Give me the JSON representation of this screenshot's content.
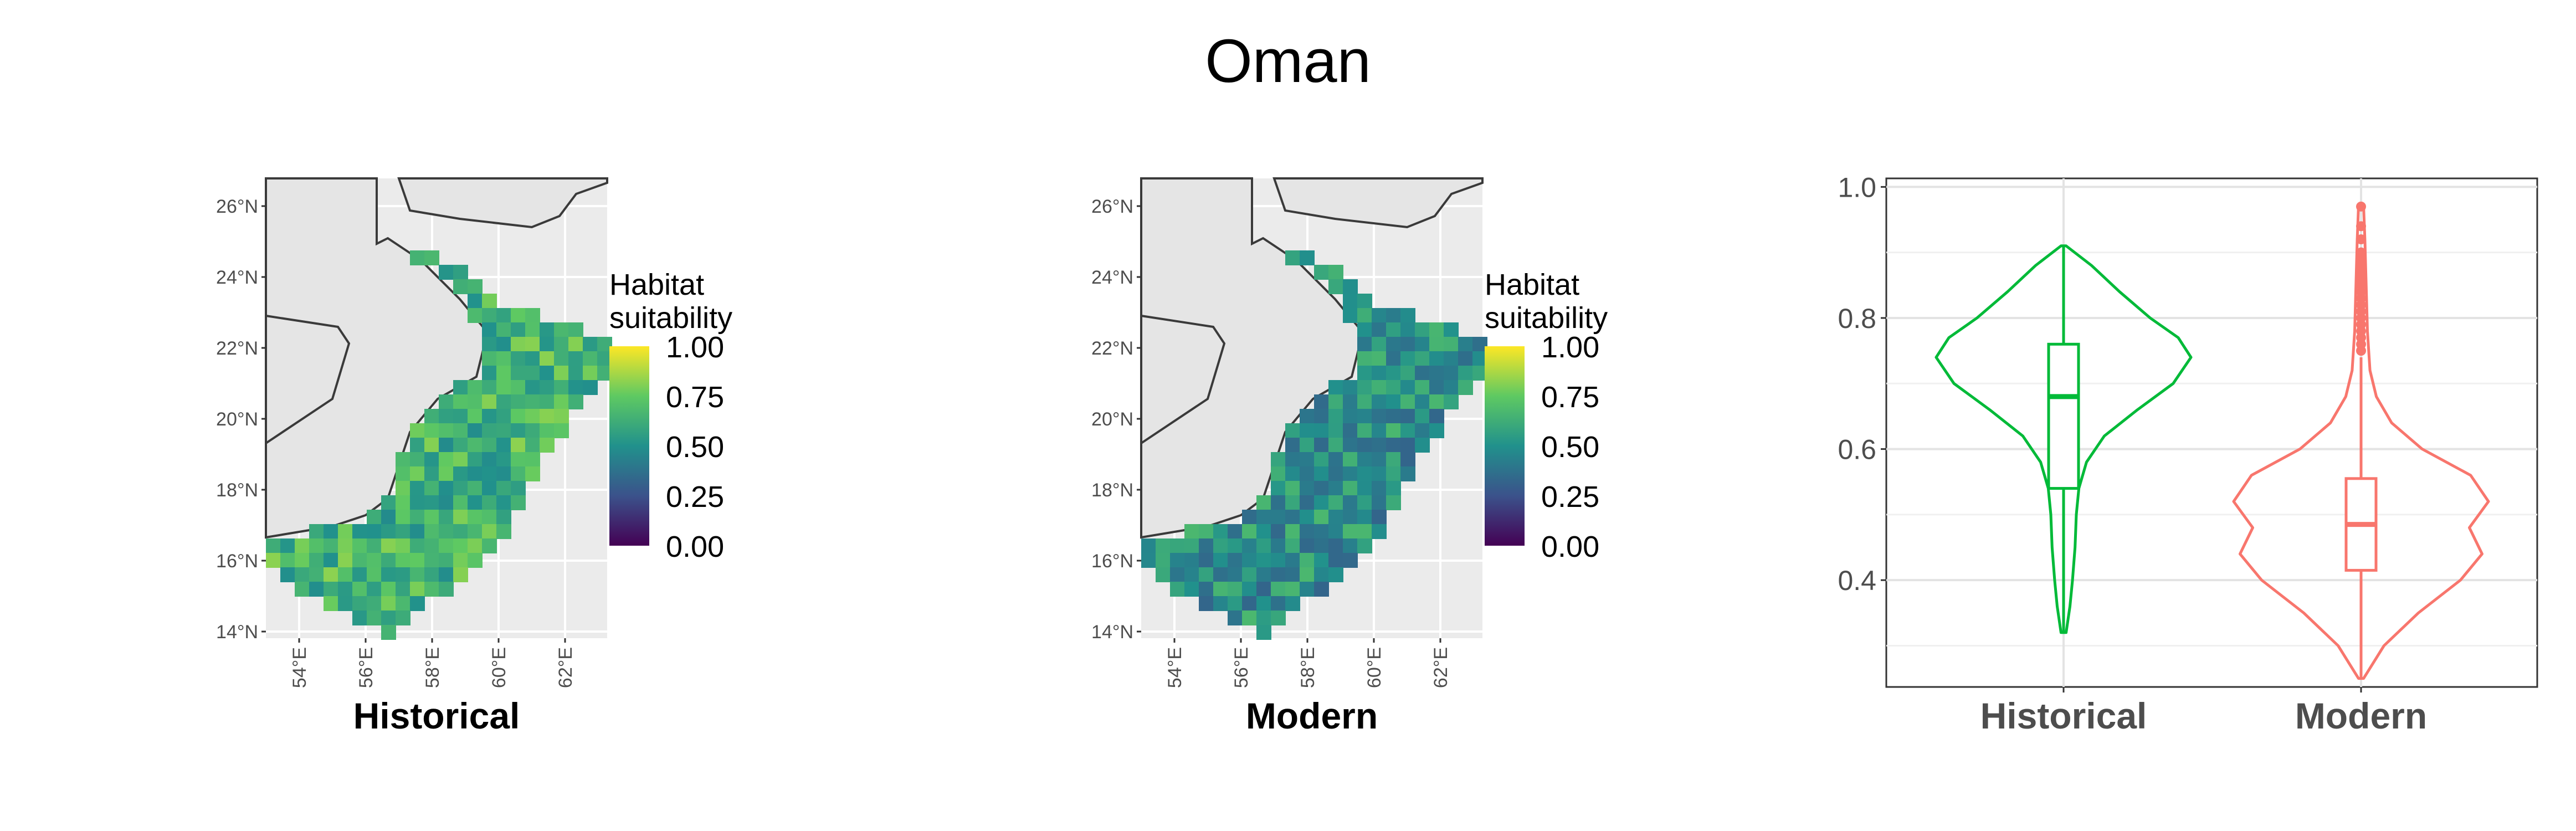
{
  "figure": {
    "title": "Oman"
  },
  "colors": {
    "historical": "#00BA38",
    "modern": "#F8766D",
    "land": "#e5e5e5",
    "panel_bg": "#ebebeb",
    "border": "#3a3a3a",
    "viridis": [
      "#440154",
      "#3b528b",
      "#21918c",
      "#5ec962",
      "#fde725"
    ]
  },
  "maps": [
    {
      "id": "historical",
      "caption": "Historical",
      "legend_title": [
        "Habitat",
        "suitability"
      ],
      "legend_ticks": [
        "1.00",
        "0.75",
        "0.50",
        "0.25",
        "0.00"
      ],
      "lat_ticks": [
        "26°N",
        "24°N",
        "22°N",
        "20°N",
        "18°N",
        "16°N",
        "14°N"
      ],
      "lon_ticks": [
        "54°E",
        "56°E",
        "58°E",
        "60°E",
        "62°E"
      ],
      "mean_suitability": 0.65
    },
    {
      "id": "modern",
      "caption": "Modern",
      "legend_title": [
        "Habitat",
        "suitability"
      ],
      "legend_ticks": [
        "1.00",
        "0.75",
        "0.50",
        "0.25",
        "0.00"
      ],
      "lat_ticks": [
        "26°N",
        "24°N",
        "22°N",
        "20°N",
        "18°N",
        "16°N",
        "14°N"
      ],
      "lon_ticks": [
        "54°E",
        "56°E",
        "58°E",
        "60°E",
        "62°E"
      ],
      "mean_suitability": 0.5
    }
  ],
  "chart_data": {
    "type": "violin",
    "categories": [
      "Historical",
      "Modern"
    ],
    "y_ticks": [
      "1.0",
      "0.8",
      "0.6",
      "0.4"
    ],
    "ylim": [
      0.25,
      1.0
    ],
    "grid": true,
    "series": [
      {
        "name": "Historical",
        "min": 0.32,
        "max": 0.91,
        "q1": 0.54,
        "median": 0.68,
        "q3": 0.76,
        "whisker_low": 0.32,
        "whisker_high": 0.91,
        "outliers": [],
        "density": [
          [
            0.32,
            0.02
          ],
          [
            0.36,
            0.05
          ],
          [
            0.4,
            0.07
          ],
          [
            0.45,
            0.09
          ],
          [
            0.5,
            0.1
          ],
          [
            0.54,
            0.12
          ],
          [
            0.58,
            0.18
          ],
          [
            0.62,
            0.32
          ],
          [
            0.66,
            0.58
          ],
          [
            0.7,
            0.86
          ],
          [
            0.74,
            1.0
          ],
          [
            0.77,
            0.9
          ],
          [
            0.8,
            0.68
          ],
          [
            0.84,
            0.44
          ],
          [
            0.88,
            0.22
          ],
          [
            0.91,
            0.02
          ]
        ]
      },
      {
        "name": "Modern",
        "min": 0.25,
        "max": 0.97,
        "q1": 0.415,
        "median": 0.485,
        "q3": 0.555,
        "whisker_low": 0.25,
        "whisker_high": 0.74,
        "outliers": [
          0.75,
          0.76,
          0.77,
          0.78,
          0.79,
          0.8,
          0.81,
          0.82,
          0.83,
          0.84,
          0.85,
          0.86,
          0.87,
          0.88,
          0.89,
          0.9,
          0.92,
          0.94,
          0.97
        ],
        "density": [
          [
            0.25,
            0.02
          ],
          [
            0.3,
            0.18
          ],
          [
            0.35,
            0.45
          ],
          [
            0.4,
            0.78
          ],
          [
            0.44,
            0.95
          ],
          [
            0.48,
            0.85
          ],
          [
            0.52,
            1.0
          ],
          [
            0.56,
            0.86
          ],
          [
            0.6,
            0.48
          ],
          [
            0.64,
            0.24
          ],
          [
            0.68,
            0.12
          ],
          [
            0.72,
            0.07
          ],
          [
            0.78,
            0.05
          ],
          [
            0.85,
            0.04
          ],
          [
            0.92,
            0.03
          ],
          [
            0.97,
            0.02
          ]
        ]
      }
    ]
  }
}
